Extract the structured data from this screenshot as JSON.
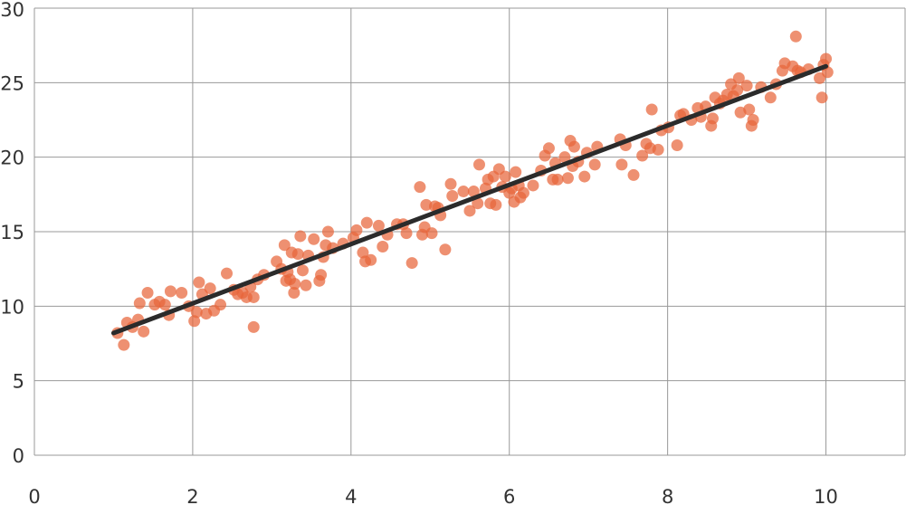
{
  "chart_data": {
    "type": "scatter",
    "title": "",
    "xlabel": "",
    "ylabel": "",
    "xlim": [
      0,
      11
    ],
    "ylim": [
      0,
      30
    ],
    "x_ticks": [
      0,
      2,
      4,
      6,
      8,
      10
    ],
    "y_ticks": [
      0,
      5,
      10,
      15,
      20,
      25,
      30
    ],
    "x_tick_labels": [
      "0",
      "2",
      "4",
      "6",
      "8",
      "10"
    ],
    "y_tick_labels": [
      "0",
      "5",
      "10",
      "15",
      "20",
      "25",
      "30"
    ],
    "grid": true,
    "legend": "none",
    "colors": {
      "points": "#e8653a",
      "fit_line": "#2b2b2b",
      "grid": "#999999"
    },
    "series": [
      {
        "kind": "points",
        "points": [
          [
            1.05,
            8.2
          ],
          [
            1.13,
            7.4
          ],
          [
            1.17,
            8.9
          ],
          [
            1.24,
            8.6
          ],
          [
            1.31,
            9.1
          ],
          [
            1.33,
            10.2
          ],
          [
            1.38,
            8.3
          ],
          [
            1.43,
            10.9
          ],
          [
            1.52,
            10.1
          ],
          [
            1.58,
            10.3
          ],
          [
            1.65,
            10.1
          ],
          [
            1.7,
            9.4
          ],
          [
            1.72,
            11.0
          ],
          [
            1.86,
            10.9
          ],
          [
            1.95,
            10.0
          ],
          [
            2.02,
            9.0
          ],
          [
            2.05,
            9.6
          ],
          [
            2.08,
            11.6
          ],
          [
            2.12,
            10.8
          ],
          [
            2.17,
            9.5
          ],
          [
            2.22,
            11.2
          ],
          [
            2.27,
            9.7
          ],
          [
            2.35,
            10.1
          ],
          [
            2.43,
            12.2
          ],
          [
            2.52,
            11.1
          ],
          [
            2.57,
            10.8
          ],
          [
            2.63,
            10.9
          ],
          [
            2.68,
            10.6
          ],
          [
            2.73,
            11.3
          ],
          [
            2.77,
            8.6
          ],
          [
            2.77,
            10.6
          ],
          [
            2.82,
            11.8
          ],
          [
            2.9,
            12.1
          ],
          [
            3.06,
            13.0
          ],
          [
            3.12,
            12.5
          ],
          [
            3.16,
            14.1
          ],
          [
            3.18,
            11.7
          ],
          [
            3.2,
            12.3
          ],
          [
            3.23,
            11.8
          ],
          [
            3.25,
            13.6
          ],
          [
            3.28,
            10.9
          ],
          [
            3.29,
            11.5
          ],
          [
            3.33,
            13.5
          ],
          [
            3.36,
            14.7
          ],
          [
            3.39,
            12.4
          ],
          [
            3.43,
            11.4
          ],
          [
            3.46,
            13.4
          ],
          [
            3.53,
            14.5
          ],
          [
            3.6,
            11.7
          ],
          [
            3.62,
            12.1
          ],
          [
            3.65,
            13.3
          ],
          [
            3.68,
            14.1
          ],
          [
            3.71,
            15.0
          ],
          [
            3.77,
            13.9
          ],
          [
            3.9,
            14.2
          ],
          [
            4.03,
            14.6
          ],
          [
            4.07,
            15.1
          ],
          [
            4.15,
            13.6
          ],
          [
            4.18,
            13.0
          ],
          [
            4.2,
            15.6
          ],
          [
            4.25,
            13.1
          ],
          [
            4.35,
            15.4
          ],
          [
            4.4,
            14.0
          ],
          [
            4.46,
            14.8
          ],
          [
            4.58,
            15.5
          ],
          [
            4.66,
            15.5
          ],
          [
            4.7,
            14.9
          ],
          [
            4.77,
            12.9
          ],
          [
            4.87,
            18.0
          ],
          [
            4.9,
            14.8
          ],
          [
            4.93,
            15.3
          ],
          [
            4.95,
            16.8
          ],
          [
            5.02,
            14.9
          ],
          [
            5.06,
            16.7
          ],
          [
            5.1,
            16.6
          ],
          [
            5.13,
            16.1
          ],
          [
            5.19,
            13.8
          ],
          [
            5.26,
            18.2
          ],
          [
            5.28,
            17.4
          ],
          [
            5.42,
            17.7
          ],
          [
            5.5,
            16.4
          ],
          [
            5.55,
            17.7
          ],
          [
            5.6,
            16.9
          ],
          [
            5.62,
            19.5
          ],
          [
            5.7,
            17.9
          ],
          [
            5.73,
            18.5
          ],
          [
            5.76,
            16.9
          ],
          [
            5.8,
            18.7
          ],
          [
            5.83,
            16.8
          ],
          [
            5.87,
            19.2
          ],
          [
            5.91,
            18.0
          ],
          [
            5.95,
            18.7
          ],
          [
            6.0,
            17.6
          ],
          [
            6.03,
            17.9
          ],
          [
            6.06,
            17.0
          ],
          [
            6.08,
            19.0
          ],
          [
            6.12,
            18.1
          ],
          [
            6.14,
            17.3
          ],
          [
            6.18,
            17.6
          ],
          [
            6.3,
            18.1
          ],
          [
            6.4,
            19.1
          ],
          [
            6.45,
            20.1
          ],
          [
            6.5,
            20.6
          ],
          [
            6.55,
            18.5
          ],
          [
            6.58,
            19.6
          ],
          [
            6.61,
            18.5
          ],
          [
            6.7,
            20.0
          ],
          [
            6.74,
            18.6
          ],
          [
            6.77,
            21.1
          ],
          [
            6.8,
            19.4
          ],
          [
            6.82,
            20.7
          ],
          [
            6.87,
            19.7
          ],
          [
            6.95,
            18.7
          ],
          [
            6.98,
            20.3
          ],
          [
            7.08,
            19.5
          ],
          [
            7.11,
            20.7
          ],
          [
            7.4,
            21.2
          ],
          [
            7.42,
            19.5
          ],
          [
            7.47,
            20.8
          ],
          [
            7.57,
            18.8
          ],
          [
            7.68,
            20.1
          ],
          [
            7.73,
            20.9
          ],
          [
            7.78,
            20.6
          ],
          [
            7.8,
            23.2
          ],
          [
            7.88,
            20.5
          ],
          [
            7.92,
            21.8
          ],
          [
            8.01,
            22.0
          ],
          [
            8.12,
            20.8
          ],
          [
            8.16,
            22.8
          ],
          [
            8.2,
            22.9
          ],
          [
            8.3,
            22.5
          ],
          [
            8.38,
            23.3
          ],
          [
            8.42,
            22.7
          ],
          [
            8.48,
            23.4
          ],
          [
            8.55,
            22.1
          ],
          [
            8.57,
            22.6
          ],
          [
            8.6,
            24.0
          ],
          [
            8.66,
            23.6
          ],
          [
            8.7,
            23.8
          ],
          [
            8.75,
            24.2
          ],
          [
            8.8,
            24.9
          ],
          [
            8.83,
            24.1
          ],
          [
            8.88,
            24.5
          ],
          [
            8.9,
            25.3
          ],
          [
            8.92,
            23.0
          ],
          [
            9.0,
            24.8
          ],
          [
            9.03,
            23.2
          ],
          [
            9.06,
            22.1
          ],
          [
            9.08,
            22.5
          ],
          [
            9.18,
            24.7
          ],
          [
            9.3,
            24.0
          ],
          [
            9.37,
            24.9
          ],
          [
            9.45,
            25.8
          ],
          [
            9.48,
            26.3
          ],
          [
            9.58,
            26.1
          ],
          [
            9.62,
            28.1
          ],
          [
            9.64,
            25.8
          ],
          [
            9.68,
            25.7
          ],
          [
            9.78,
            25.9
          ],
          [
            9.92,
            25.3
          ],
          [
            9.95,
            24.0
          ],
          [
            9.97,
            26.2
          ],
          [
            10.0,
            26.6
          ],
          [
            10.02,
            25.7
          ]
        ]
      },
      {
        "kind": "fit_line",
        "points": [
          [
            1.0,
            8.2
          ],
          [
            10.0,
            26.1
          ]
        ]
      }
    ]
  }
}
